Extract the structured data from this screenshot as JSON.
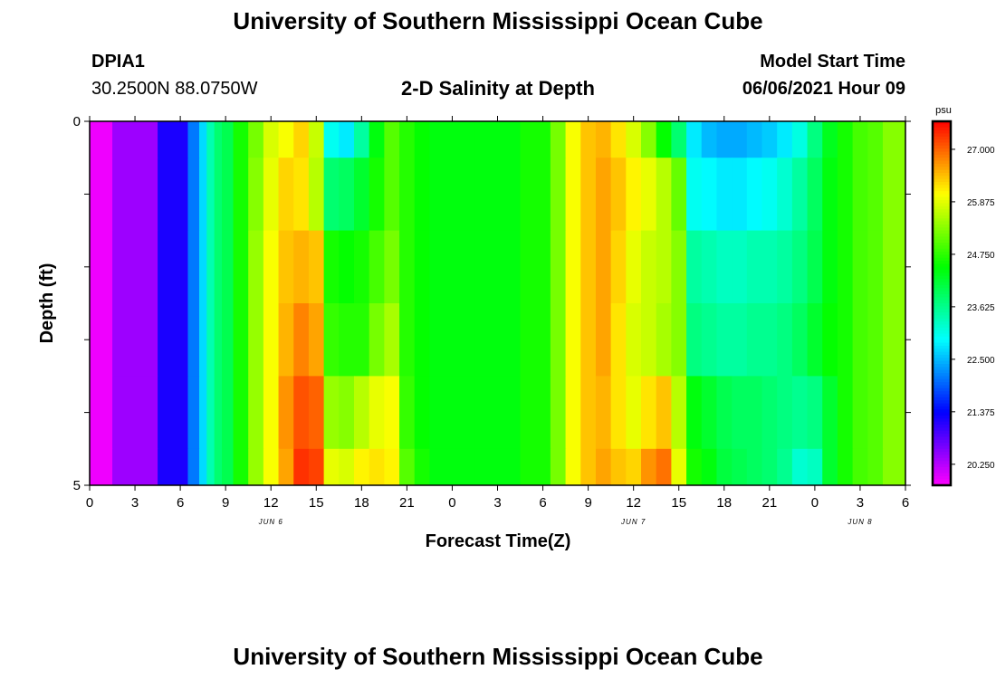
{
  "header": {
    "title": "University of Southern Mississippi Ocean Cube",
    "station": "DPIA1",
    "coords": "30.2500N  88.0750W",
    "subtitle": "2-D Salinity at Depth",
    "model_label": "Model Start Time",
    "model_time": "06/06/2021 Hour 09"
  },
  "footer": {
    "title": "University of Southern Mississippi Ocean Cube"
  },
  "chart_data": {
    "type": "heatmap",
    "title": "2-D Salinity at Depth",
    "xlabel": "Forecast Time(Z)",
    "ylabel": "Depth (ft)",
    "x_tick_labels": [
      "0",
      "3",
      "6",
      "9",
      "12",
      "15",
      "18",
      "21",
      "0",
      "3",
      "6",
      "9",
      "12",
      "15",
      "18",
      "21",
      "0",
      "3",
      "6"
    ],
    "date_labels": [
      {
        "label": "JUN 6",
        "hour": 12
      },
      {
        "label": "JUN 7",
        "hour": 36
      },
      {
        "label": "JUN 8",
        "hour": 51
      }
    ],
    "x_range_hours": [
      0,
      54
    ],
    "y_range_ft": [
      0,
      5
    ],
    "y_tick_labels": [
      {
        "depth": 0,
        "label": "0"
      },
      {
        "depth": 5,
        "label": "5"
      }
    ],
    "y_minor_ticks": [
      1,
      2,
      3,
      4
    ],
    "colorbar": {
      "unit": "psu",
      "range": [
        19.8,
        27.6
      ],
      "tick_labels": [
        "27.000",
        "25.875",
        "24.750",
        "23.625",
        "22.500",
        "21.375",
        "20.250"
      ],
      "tick_values": [
        27.0,
        25.875,
        24.75,
        23.625,
        22.5,
        21.375,
        20.25
      ]
    },
    "layer_depths_ft": [
      0,
      0.5,
      1.5,
      2.5,
      3.5,
      4.5
    ],
    "time_hours": [
      0,
      3,
      6,
      7,
      7.5,
      8,
      8.5,
      9,
      10,
      11,
      12,
      13,
      14,
      15,
      16,
      17,
      18,
      19,
      20,
      21,
      22,
      23,
      24,
      27,
      30,
      31,
      32,
      33,
      34,
      35,
      36,
      37,
      38,
      39,
      40,
      41,
      42,
      43,
      44,
      45,
      46,
      47,
      48,
      49,
      50,
      51,
      52,
      53,
      54
    ],
    "salinity_psu": [
      [
        19.9,
        20.4,
        21.2,
        22.1,
        22.7,
        23.4,
        23.8,
        24.0,
        24.6,
        25.2,
        25.8,
        26.0,
        26.3,
        25.7,
        23.0,
        22.8,
        23.5,
        24.4,
        25.0,
        24.7,
        24.5,
        24.4,
        24.4,
        24.4,
        24.6,
        25.2,
        26.0,
        26.4,
        26.5,
        26.2,
        25.8,
        25.3,
        24.5,
        23.8,
        22.8,
        22.5,
        22.4,
        22.4,
        22.5,
        22.6,
        22.8,
        23.1,
        23.7,
        24.3,
        24.6,
        24.9,
        25.0,
        25.3,
        25.3
      ],
      [
        19.9,
        20.4,
        21.2,
        22.1,
        22.7,
        23.4,
        23.8,
        24.0,
        24.6,
        25.3,
        25.9,
        26.3,
        26.2,
        25.6,
        23.8,
        23.9,
        24.2,
        24.6,
        25.0,
        24.7,
        24.5,
        24.4,
        24.4,
        24.4,
        24.6,
        25.2,
        26.0,
        26.4,
        26.6,
        26.4,
        26.1,
        25.9,
        25.6,
        25.1,
        23.0,
        22.9,
        22.8,
        22.8,
        22.9,
        23.0,
        23.2,
        23.5,
        23.9,
        24.4,
        24.6,
        24.9,
        25.0,
        25.3,
        25.3
      ],
      [
        19.9,
        20.4,
        21.2,
        22.1,
        22.7,
        23.4,
        23.8,
        24.0,
        24.6,
        25.4,
        26.0,
        26.4,
        26.5,
        26.4,
        24.6,
        24.5,
        24.6,
        24.9,
        25.2,
        24.7,
        24.5,
        24.4,
        24.4,
        24.4,
        24.6,
        25.2,
        26.0,
        26.4,
        26.6,
        26.3,
        25.9,
        25.7,
        25.6,
        25.3,
        23.5,
        23.4,
        23.3,
        23.3,
        23.4,
        23.4,
        23.5,
        23.7,
        24.0,
        24.4,
        24.6,
        24.9,
        25.0,
        25.3,
        25.3
      ],
      [
        19.9,
        20.4,
        21.2,
        22.1,
        22.7,
        23.4,
        23.8,
        24.0,
        24.6,
        25.4,
        26.0,
        26.5,
        26.8,
        26.6,
        24.8,
        24.7,
        24.7,
        25.2,
        25.5,
        24.7,
        24.5,
        24.4,
        24.4,
        24.4,
        24.6,
        25.2,
        26.0,
        26.4,
        26.6,
        26.2,
        25.8,
        25.7,
        25.5,
        25.3,
        23.7,
        23.6,
        23.5,
        23.5,
        23.6,
        23.6,
        23.7,
        23.9,
        24.2,
        24.5,
        24.6,
        24.9,
        25.0,
        25.3,
        25.3
      ],
      [
        19.9,
        20.4,
        21.2,
        22.1,
        22.7,
        23.4,
        23.8,
        24.0,
        24.6,
        25.4,
        26.0,
        26.7,
        27.1,
        27.0,
        25.4,
        25.3,
        25.6,
        25.9,
        26.0,
        24.8,
        24.5,
        24.4,
        24.4,
        24.4,
        24.6,
        25.2,
        26.0,
        26.4,
        26.5,
        26.2,
        25.9,
        26.2,
        26.4,
        25.6,
        24.4,
        24.2,
        24.0,
        23.9,
        23.9,
        23.8,
        23.7,
        23.6,
        23.7,
        24.2,
        24.6,
        24.9,
        25.0,
        25.3,
        25.3
      ],
      [
        19.9,
        20.4,
        21.2,
        22.1,
        22.7,
        23.4,
        23.8,
        24.0,
        24.6,
        25.4,
        26.0,
        26.6,
        27.3,
        27.2,
        25.9,
        25.8,
        26.1,
        26.2,
        26.1,
        25.0,
        24.6,
        24.4,
        24.4,
        24.4,
        24.6,
        25.2,
        26.0,
        26.4,
        26.6,
        26.4,
        26.3,
        26.7,
        26.9,
        25.9,
        24.6,
        24.4,
        24.1,
        24.0,
        23.9,
        23.8,
        23.6,
        23.2,
        23.3,
        24.2,
        24.6,
        24.9,
        25.0,
        25.3,
        25.3
      ]
    ]
  }
}
